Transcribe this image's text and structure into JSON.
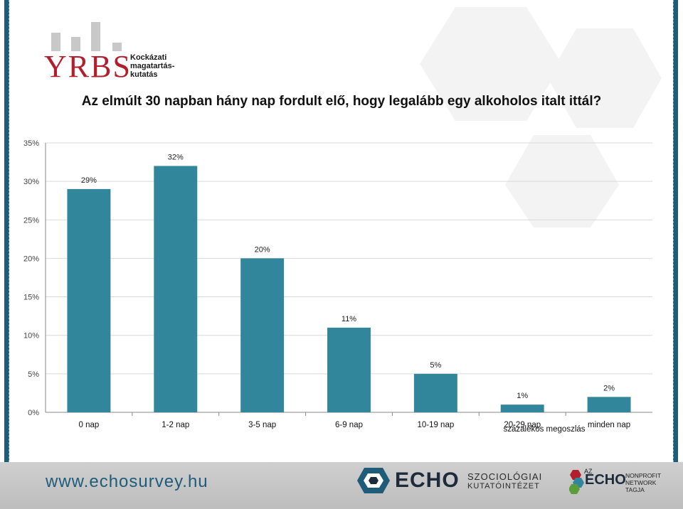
{
  "logo": {
    "main": "YRBS",
    "subtitle_lines": [
      "Kockázati",
      "magatartás-",
      "kutatás"
    ]
  },
  "chart_data": {
    "type": "bar",
    "title": "Az elmúlt 30 napban hány nap fordult elő, hogy legalább egy alkoholos italt ittál?",
    "categories": [
      "0 nap",
      "1-2 nap",
      "3-5 nap",
      "6-9 nap",
      "10-19 nap",
      "20-29 nap",
      "minden nap"
    ],
    "values": [
      29,
      32,
      20,
      11,
      5,
      1,
      2
    ],
    "data_labels": [
      "29%",
      "32%",
      "20%",
      "11%",
      "5%",
      "1%",
      "2%"
    ],
    "ylim": [
      0,
      35
    ],
    "yticks": [
      0,
      5,
      10,
      15,
      20,
      25,
      30,
      35
    ],
    "ytick_labels": [
      "0%",
      "5%",
      "10%",
      "15%",
      "20%",
      "25%",
      "30%",
      "35%"
    ],
    "series_name": "százalékos megoszlás",
    "bar_color": "#31869b",
    "grid": true
  },
  "footer": {
    "url": "www.echosurvey.hu",
    "echo": "ECHO",
    "echo_sub1": "SZOCIOLÓGIAI",
    "echo_sub2": "KUTATÓINTÉZET",
    "network_az": "AZ",
    "network_echo": "ECHO",
    "network_lines": [
      "NONPROFIT",
      "NETWORK",
      "TAGJA"
    ]
  },
  "colors": {
    "frame": "#1f5c7a",
    "logo_red": "#b21e2b",
    "bar": "#31869b"
  }
}
